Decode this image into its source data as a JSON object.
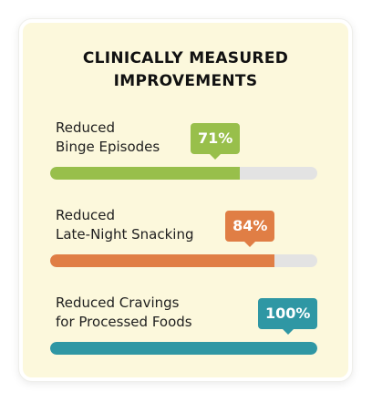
{
  "title": {
    "line1": "CLINICALLY MEASURED",
    "line2": "IMPROVEMENTS"
  },
  "metrics": [
    {
      "label_line1": "Reduced",
      "label_line2": "Binge Episodes",
      "value_label": "71%",
      "value": 71,
      "color": "#98bf4b"
    },
    {
      "label_line1": "Reduced",
      "label_line2": "Late-Night Snacking",
      "value_label": "84%",
      "value": 84,
      "color": "#e07e45"
    },
    {
      "label_line1": "Reduced Cravings",
      "label_line2": "for Processed Foods",
      "value_label": "100%",
      "value": 100,
      "color": "#2f97a4"
    }
  ],
  "colors": {
    "card_background": "#fcf8dc",
    "track": "#e3e3e3",
    "title_text": "#111111"
  }
}
